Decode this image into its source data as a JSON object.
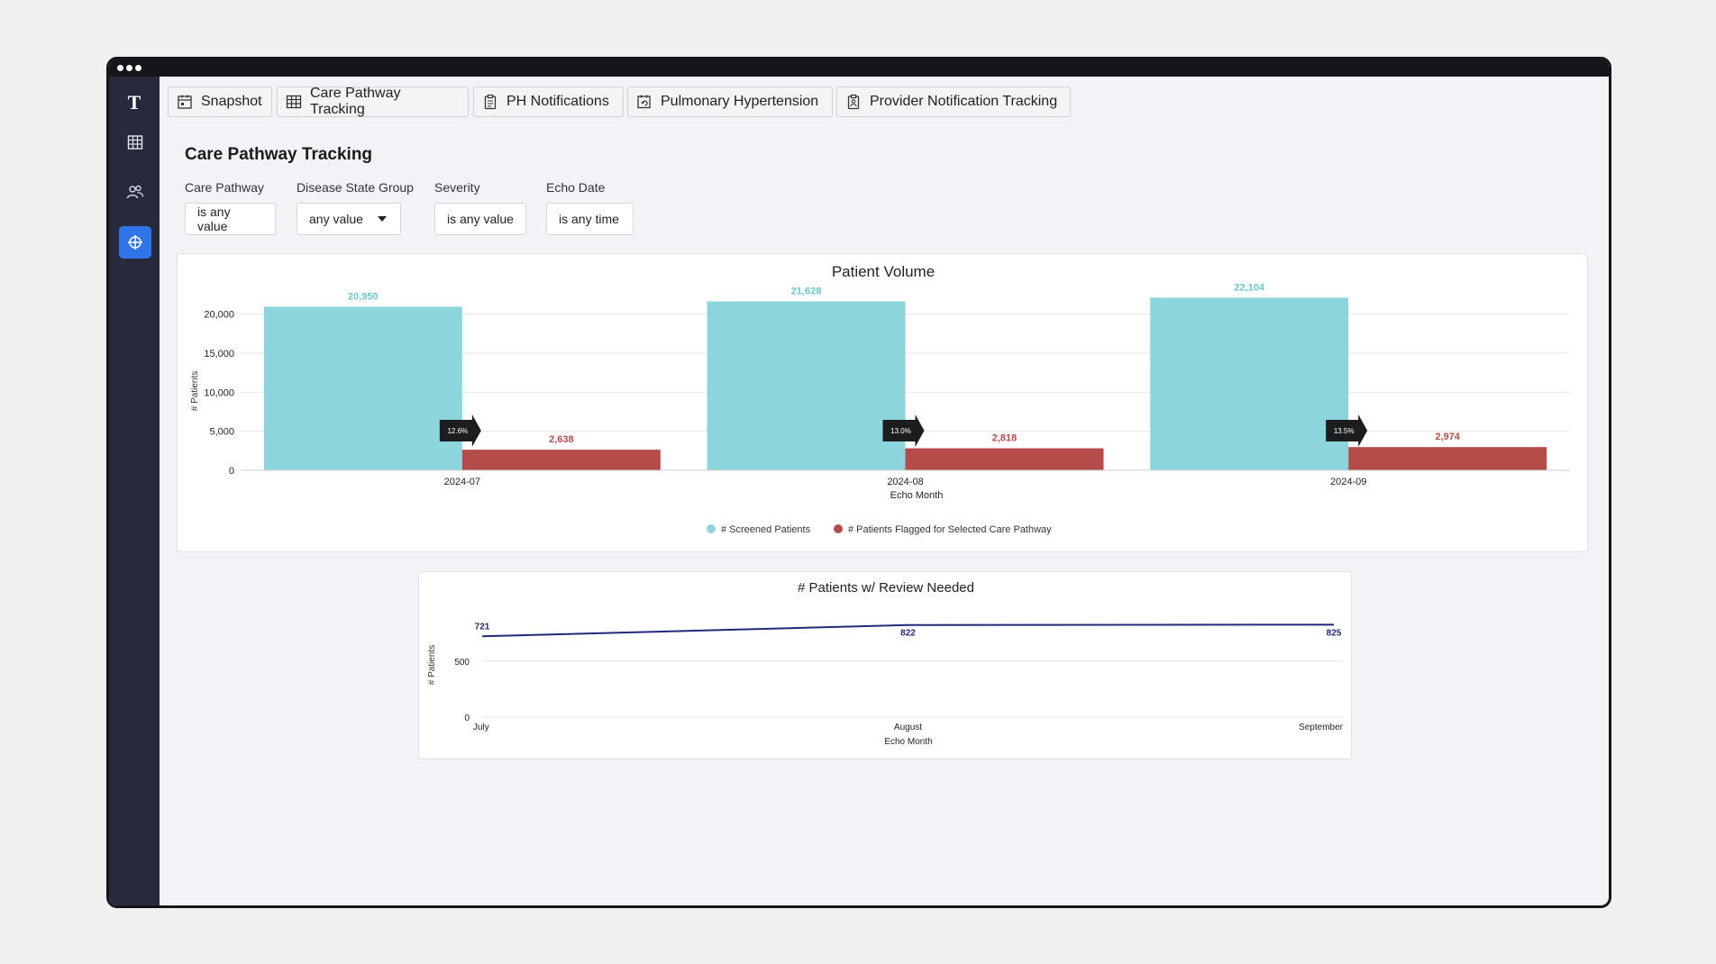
{
  "app": {
    "logo_text": "T",
    "nav_icons": [
      "table-icon",
      "users-icon",
      "crosshair-icon"
    ],
    "active_nav": "crosshair-icon"
  },
  "tabs": [
    {
      "label": "Snapshot",
      "icon": "calendar-icon"
    },
    {
      "label": "Care Pathway Tracking",
      "icon": "table-icon"
    },
    {
      "label": "PH Notifications",
      "icon": "clipboard-icon"
    },
    {
      "label": "Pulmonary Hypertension",
      "icon": "calendar-refresh-icon"
    },
    {
      "label": "Provider Notification Tracking",
      "icon": "clipboard-person-icon"
    }
  ],
  "page": {
    "title": "Care Pathway Tracking"
  },
  "filters": [
    {
      "label": "Care Pathway",
      "value": "is any value"
    },
    {
      "label": "Disease State Group",
      "value": "any value"
    },
    {
      "label": "Severity",
      "value": "is any value"
    },
    {
      "label": "Echo Date",
      "value": "is any time"
    }
  ],
  "colors": {
    "screened": "#8dd5dd",
    "flagged": "#b64c4a",
    "line": "#1f2a7a",
    "accent": "#2f74e8"
  },
  "chart_data": [
    {
      "type": "bar",
      "title": "Patient Volume",
      "xlabel": "Echo Month",
      "ylabel": "# Patients",
      "categories": [
        "2024-07",
        "2024-08",
        "2024-09"
      ],
      "series": [
        {
          "name": "# Screened Patients",
          "values": [
            20950,
            21628,
            22104
          ],
          "labels": [
            "20,950",
            "21,628",
            "22,104"
          ]
        },
        {
          "name": "# Patients Flagged for Selected Care Pathway",
          "values": [
            2638,
            2818,
            2974
          ],
          "labels": [
            "2,638",
            "2,818",
            "2,974"
          ]
        }
      ],
      "annotations": [
        "12.6%",
        "13.0%",
        "13.5%"
      ],
      "yticks": [
        "0",
        "5,000",
        "10,000",
        "15,000",
        "20,000"
      ],
      "ylim": [
        0,
        22500
      ],
      "grid": true,
      "legend": "bottom"
    },
    {
      "type": "line",
      "title": "# Patients w/ Review Needed",
      "xlabel": "Echo Month",
      "ylabel": "# Patients",
      "categories": [
        "July",
        "August",
        "September"
      ],
      "series": [
        {
          "values": [
            721,
            822,
            825
          ],
          "labels": [
            "721",
            "822",
            "825"
          ]
        }
      ],
      "yticks": [
        "0",
        "500"
      ],
      "ylim": [
        0,
        900
      ],
      "grid": true
    }
  ]
}
